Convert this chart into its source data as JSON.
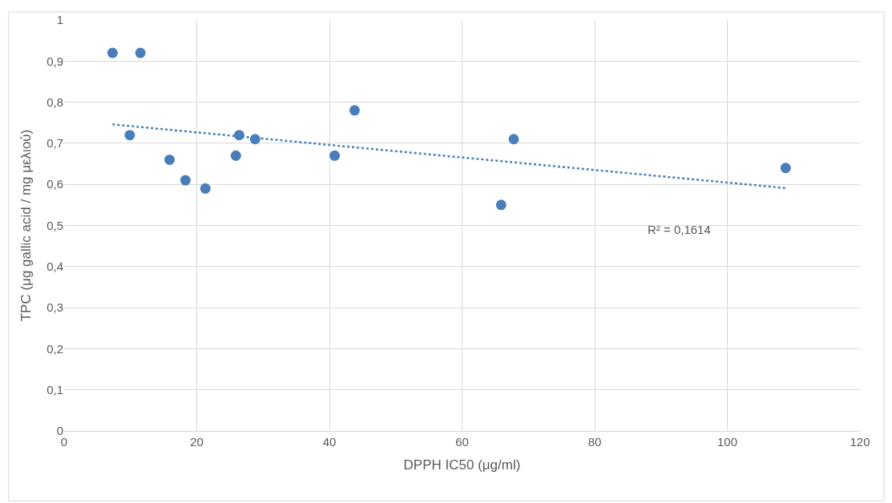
{
  "chart_data": {
    "type": "scatter",
    "xlabel": "DPPH IC50 (μg/ml)",
    "ylabel": "TPC (μg gallic acid / mg μελιού)",
    "series": [
      {
        "color": "#4a7ebb",
        "marker": "circle",
        "x": [
          7.3,
          11.5,
          9.9,
          15.9,
          18.3,
          21.3,
          25.9,
          26.4,
          28.8,
          40.8,
          43.8,
          65.9,
          67.8,
          108.8
        ],
        "values": [
          0.92,
          0.92,
          0.72,
          0.66,
          0.61,
          0.59,
          0.67,
          0.72,
          0.71,
          0.67,
          0.78,
          0.55,
          0.71,
          0.64
        ]
      },
      {
        "type": "line",
        "color": "#4a7ebb",
        "line_style": "dotted",
        "x": [
          7.3,
          108.8
        ],
        "values": [
          0.746,
          0.591
        ]
      }
    ],
    "annotations": [
      "R² = 0,1614"
    ],
    "xlim": [
      0,
      120
    ],
    "xticks": [
      0,
      20,
      40,
      60,
      80,
      100,
      120
    ],
    "ylim": [
      0,
      1
    ],
    "yticks": [
      0,
      {
        "value": 0.1,
        "label": "0,1"
      },
      {
        "value": 0.2,
        "label": "0,2"
      },
      {
        "value": 0.3,
        "label": "0,3"
      },
      {
        "value": 0.4,
        "label": "0,4"
      },
      {
        "value": 0.5,
        "label": "0,5"
      },
      {
        "value": 0.6,
        "label": "0,6"
      },
      {
        "value": 0.7,
        "label": "0,7"
      },
      {
        "value": 0.8,
        "label": "0,8"
      },
      {
        "value": 0.9,
        "label": "0,9"
      },
      1
    ],
    "grid": true
  }
}
